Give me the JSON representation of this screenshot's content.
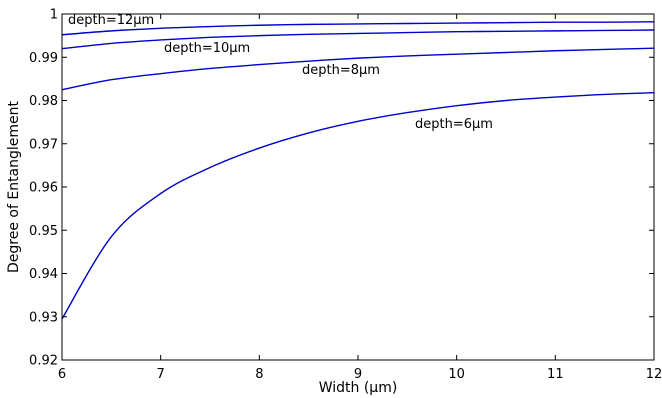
{
  "chart_data": {
    "type": "line",
    "title": "",
    "xlabel": "Width (µm)",
    "ylabel": "Degree of Entanglement",
    "xlim": [
      6,
      12
    ],
    "ylim": [
      0.92,
      1.0
    ],
    "x_ticks": [
      6,
      7,
      8,
      9,
      10,
      11,
      12
    ],
    "x_tick_labels": [
      "6",
      "7",
      "8",
      "9",
      "10",
      "11",
      "12"
    ],
    "y_ticks": [
      0.92,
      0.93,
      0.94,
      0.95,
      0.96,
      0.97,
      0.98,
      0.99,
      1.0
    ],
    "y_tick_labels": [
      "0.92",
      "0.93",
      "0.94",
      "0.95",
      "0.96",
      "0.97",
      "0.98",
      "0.99",
      "1"
    ],
    "grid": false,
    "line_color": "#0000cc",
    "x": [
      6,
      6.5,
      7,
      7.5,
      8,
      8.5,
      9,
      9.5,
      10,
      10.5,
      11,
      11.5,
      12
    ],
    "series": [
      {
        "values": [
          0.9295,
          0.9485,
          0.9585,
          0.9645,
          0.969,
          0.9725,
          0.9752,
          0.9772,
          0.9788,
          0.98,
          0.9808,
          0.9814,
          0.9818
        ],
        "annotation": "depth=6µm"
      },
      {
        "values": [
          0.9825,
          0.9848,
          0.9862,
          0.9874,
          0.9883,
          0.9891,
          0.9898,
          0.9903,
          0.9907,
          0.9911,
          0.9915,
          0.9918,
          0.9921
        ],
        "annotation": "depth=8µm"
      },
      {
        "values": [
          0.992,
          0.9932,
          0.994,
          0.9946,
          0.995,
          0.9953,
          0.9955,
          0.9957,
          0.9959,
          0.996,
          0.9961,
          0.9962,
          0.9963
        ],
        "annotation": "depth=10µm"
      },
      {
        "values": [
          0.9952,
          0.9961,
          0.9967,
          0.9971,
          0.9974,
          0.9976,
          0.9977,
          0.9978,
          0.9979,
          0.998,
          0.9981,
          0.9981,
          0.9982
        ],
        "annotation": "depth=12µm"
      }
    ]
  }
}
